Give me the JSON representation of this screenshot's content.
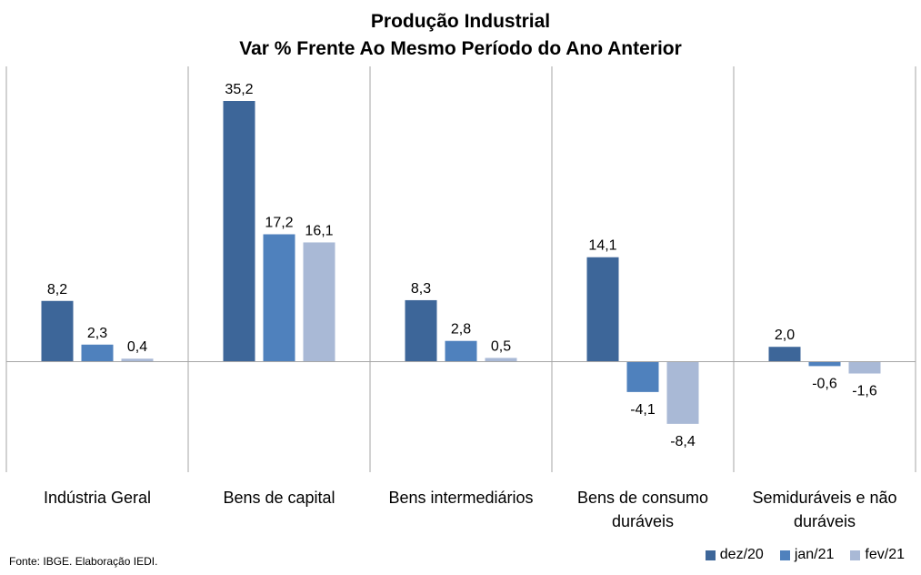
{
  "chart_data": {
    "type": "bar",
    "title": "Produção Industrial",
    "subtitle": "Var % Frente Ao Mesmo Período do Ano Anterior",
    "categories": [
      "Indústria Geral",
      "Bens de capital",
      "Bens intermediários",
      "Bens de consumo duráveis",
      "Semiduráveis e não duráveis"
    ],
    "category_lines": [
      [
        "Indústria Geral"
      ],
      [
        "Bens de capital"
      ],
      [
        "Bens intermediários"
      ],
      [
        "Bens de consumo",
        "duráveis"
      ],
      [
        "Semiduráveis e não",
        "duráveis"
      ]
    ],
    "series": [
      {
        "name": "dez/20",
        "color": "#3d6699",
        "values": [
          8.2,
          35.2,
          8.3,
          14.1,
          2.0
        ],
        "labels": [
          "8,2",
          "35,2",
          "8,3",
          "14,1",
          "2,0"
        ]
      },
      {
        "name": "jan/21",
        "color": "#4f81bd",
        "values": [
          2.3,
          17.2,
          2.8,
          -4.1,
          -0.6
        ],
        "labels": [
          "2,3",
          "17,2",
          "2,8",
          "-4,1",
          "-0,6"
        ]
      },
      {
        "name": "fev/21",
        "color": "#a9b9d6",
        "values": [
          0.4,
          16.1,
          0.5,
          -8.4,
          -1.6
        ],
        "labels": [
          "0,4",
          "16,1",
          "0,5",
          "-8,4",
          "-1,6"
        ]
      }
    ],
    "legend_position": "bottom-right",
    "grid": false
  },
  "footer": {
    "source": "Fonte: IBGE. Elaboração IEDI."
  }
}
